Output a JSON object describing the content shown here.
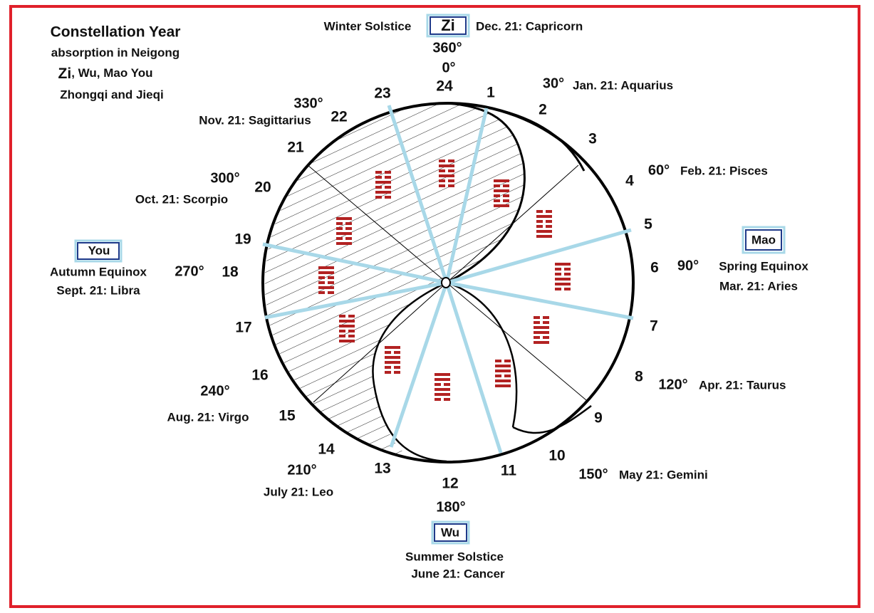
{
  "title": {
    "line1": "Constellation  Year",
    "line2": "absorption in Neigong",
    "line3": {
      "zi": "Zi",
      "rest": ", Wu, Mao You"
    },
    "line4": "Zhongqi and Jieqi"
  },
  "boxes": {
    "zi": "Zi",
    "mao": "Mao",
    "wu": "Wu",
    "you": "You"
  },
  "seasons": {
    "winter": "Winter Solstice",
    "spring": "Spring Equinox",
    "summer": "Summer Solstice",
    "autumn": "Autumn Equinox"
  },
  "hours": [
    "1",
    "2",
    "3",
    "4",
    "5",
    "6",
    "7",
    "8",
    "9",
    "10",
    "11",
    "12",
    "13",
    "14",
    "15",
    "16",
    "17",
    "18",
    "19",
    "20",
    "21",
    "22",
    "23",
    "24"
  ],
  "degrees": [
    "360°",
    "0°",
    "30°",
    "60°",
    "90°",
    "120°",
    "150°",
    "180°",
    "210°",
    "240°",
    "270°",
    "300°",
    "330°"
  ],
  "signs": [
    "Dec. 21: Capricorn",
    "Jan. 21: Aquarius",
    "Feb. 21: Pisces",
    "Mar. 21: Aries",
    "Apr. 21: Taurus",
    "May 21: Gemini",
    "June 21:  Cancer",
    "July 21: Leo",
    "Aug. 21: Virgo",
    "Sept. 21: Libra",
    "Oct. 21: Scorpio",
    "Nov. 21: Sagittarius"
  ]
}
